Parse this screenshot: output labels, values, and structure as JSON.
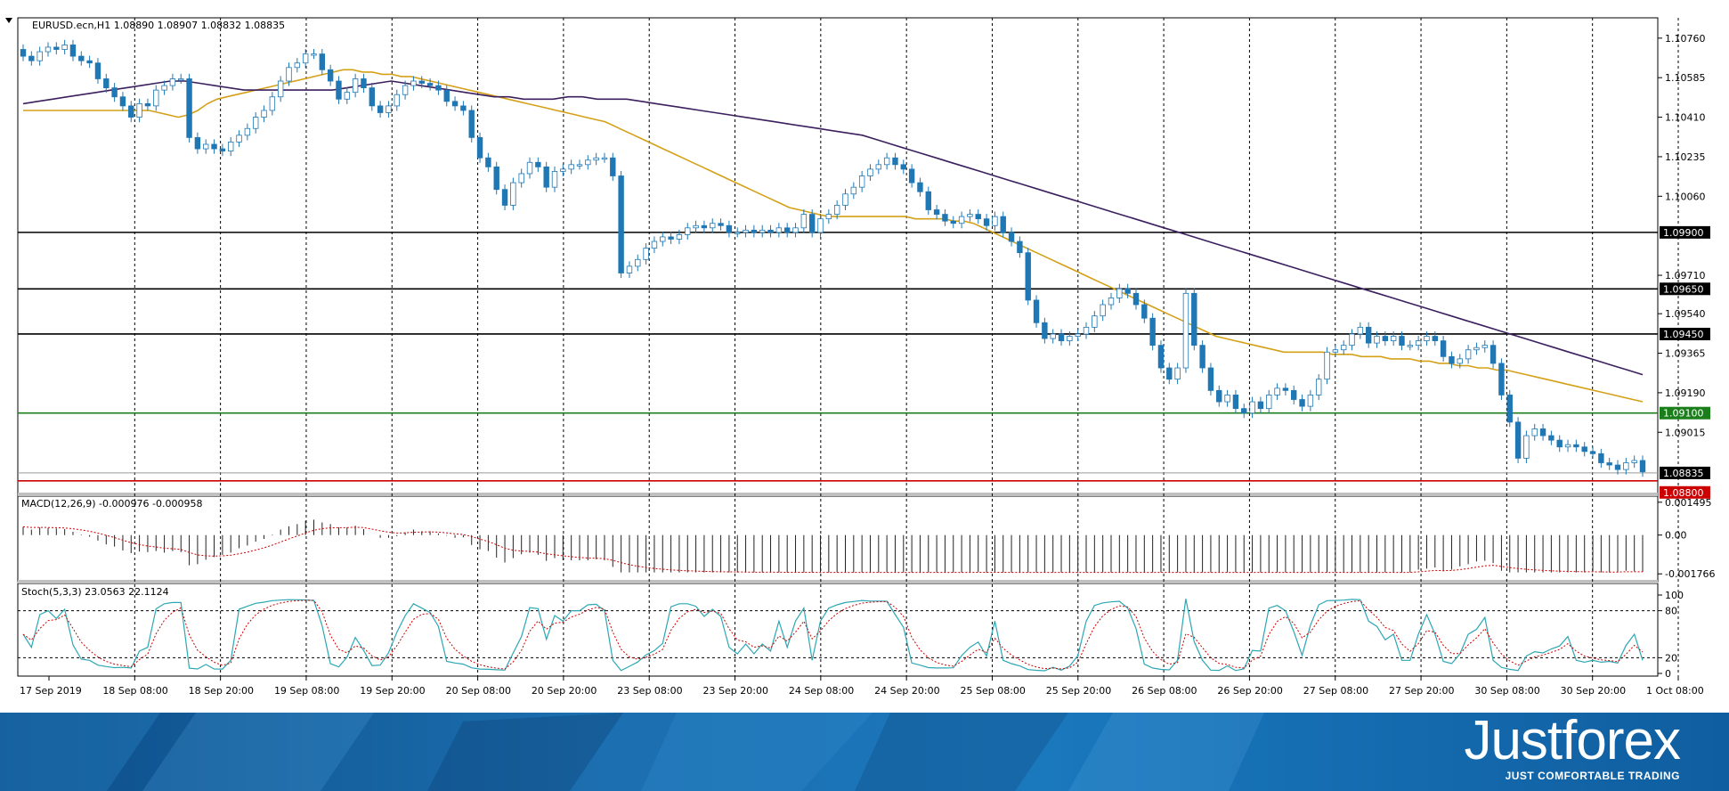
{
  "chart_data": {
    "type": "candlestick",
    "symbol_info": "EURUSD.ecn,H1  1.08890 1.08907 1.08832 1.08835",
    "price_axis": {
      "ylim": [
        1.0874,
        1.1085
      ],
      "ticks": [
        "1.10760",
        "1.10585",
        "1.10410",
        "1.10235",
        "1.10060",
        "1.09710",
        "1.09540",
        "1.09365",
        "1.09190",
        "1.09015"
      ]
    },
    "time_axis": {
      "labels": [
        "17 Sep 2019",
        "18 Sep 08:00",
        "18 Sep 20:00",
        "19 Sep 08:00",
        "19 Sep 20:00",
        "20 Sep 08:00",
        "20 Sep 20:00",
        "23 Sep 08:00",
        "23 Sep 20:00",
        "24 Sep 08:00",
        "24 Sep 20:00",
        "25 Sep 08:00",
        "25 Sep 20:00",
        "26 Sep 08:00",
        "26 Sep 20:00",
        "27 Sep 08:00",
        "27 Sep 20:00",
        "30 Sep 08:00",
        "30 Sep 20:00",
        "1 Oct 08:00"
      ]
    },
    "levels": [
      {
        "price": 1.099,
        "label": "1.09900",
        "color": "#000000"
      },
      {
        "price": 1.0965,
        "label": "1.09650",
        "color": "#000000"
      },
      {
        "price": 1.0945,
        "label": "1.09450",
        "color": "#000000"
      },
      {
        "price": 1.091,
        "label": "1.09100",
        "color": "#1a7f1a"
      }
    ],
    "current_price": {
      "price": 1.08835,
      "label": "1.08835"
    },
    "bottom_level": {
      "price": 1.088,
      "label": "1.08800",
      "color": "#cc0000"
    },
    "closes": [
      1.1068,
      1.1066,
      1.107,
      1.1072,
      1.1071,
      1.1073,
      1.1068,
      1.1066,
      1.1065,
      1.1058,
      1.1054,
      1.105,
      1.1046,
      1.1041,
      1.1047,
      1.1046,
      1.1053,
      1.1055,
      1.1058,
      1.1058,
      1.1032,
      1.1027,
      1.1029,
      1.1027,
      1.1026,
      1.103,
      1.1033,
      1.1036,
      1.1041,
      1.1044,
      1.105,
      1.1057,
      1.1063,
      1.1065,
      1.1069,
      1.1069,
      1.1062,
      1.1057,
      1.1049,
      1.1052,
      1.1058,
      1.1054,
      1.1046,
      1.1043,
      1.1046,
      1.1051,
      1.1055,
      1.1057,
      1.1056,
      1.1055,
      1.1053,
      1.1048,
      1.1046,
      1.1044,
      1.1032,
      1.1023,
      1.1019,
      1.1009,
      1.1002,
      1.1012,
      1.1016,
      1.1021,
      1.1019,
      1.101,
      1.1017,
      1.1018,
      1.102,
      1.102,
      1.1022,
      1.1023,
      1.1023,
      1.1015,
      1.0972,
      1.0975,
      1.0978,
      1.0983,
      1.0986,
      1.0988,
      1.0987,
      1.0989,
      1.0992,
      1.0993,
      1.0992,
      1.0994,
      1.0993,
      1.099,
      1.099,
      1.0991,
      1.099,
      1.0991,
      1.099,
      1.0992,
      1.099,
      1.0992,
      1.0998,
      1.099,
      1.0996,
      1.0998,
      1.1002,
      1.1007,
      1.101,
      1.1015,
      1.1018,
      1.102,
      1.1023,
      1.102,
      1.1018,
      1.1012,
      1.1008,
      1.1,
      1.0998,
      1.0995,
      1.0994,
      1.0997,
      1.0998,
      1.0996,
      1.0993,
      1.0997,
      1.099,
      1.0986,
      1.0981,
      1.096,
      1.095,
      1.0943,
      1.0945,
      1.0942,
      1.0944,
      1.0945,
      1.0948,
      1.0953,
      1.0958,
      1.0961,
      1.0965,
      1.0963,
      1.0958,
      1.0952,
      1.094,
      1.093,
      1.0925,
      1.093,
      1.0963,
      1.094,
      1.093,
      1.092,
      1.0915,
      1.0918,
      1.0912,
      1.091,
      1.0915,
      1.0912,
      1.0918,
      1.0921,
      1.092,
      1.0916,
      1.0913,
      1.0918,
      1.0925,
      1.0937,
      1.0938,
      1.094,
      1.0945,
      1.0948,
      1.0941,
      1.0944,
      1.0942,
      1.0944,
      1.094,
      1.094,
      1.0942,
      1.0944,
      1.0942,
      1.0935,
      1.0932,
      1.0934,
      1.0938,
      1.0939,
      1.094,
      1.0932,
      1.0918,
      1.0906,
      1.089,
      1.09,
      1.0903,
      1.09,
      1.0898,
      1.0895,
      1.0896,
      1.0895,
      1.0893,
      1.0892,
      1.0888,
      1.0887,
      1.0885,
      1.0888,
      1.0889,
      1.0884
    ],
    "sma_fast": [
      1.1044,
      1.1044,
      1.1044,
      1.1044,
      1.1044,
      1.1044,
      1.1044,
      1.1044,
      1.1044,
      1.1044,
      1.1044,
      1.1044,
      1.1044,
      1.1044,
      1.1043,
      1.1042,
      1.1041,
      1.1042,
      1.1044,
      1.1047,
      1.1049,
      1.105,
      1.1051,
      1.1052,
      1.1053,
      1.1054,
      1.1055,
      1.1056,
      1.1057,
      1.1058,
      1.1059,
      1.106,
      1.1061,
      1.1062,
      1.1062,
      1.1061,
      1.1061,
      1.106,
      1.106,
      1.1059,
      1.1059,
      1.1058,
      1.1057,
      1.1056,
      1.1055,
      1.1054,
      1.1053,
      1.1052,
      1.1051,
      1.105,
      1.1049,
      1.1048,
      1.1047,
      1.1046,
      1.1045,
      1.1044,
      1.1043,
      1.1042,
      1.1041,
      1.104,
      1.1039,
      1.1037,
      1.1035,
      1.1033,
      1.1031,
      1.1029,
      1.1027,
      1.1025,
      1.1023,
      1.1021,
      1.1019,
      1.1017,
      1.1015,
      1.1013,
      1.1011,
      1.1009,
      1.1007,
      1.1005,
      1.1003,
      1.1001,
      1.1,
      1.0999,
      1.0998,
      1.0997,
      1.0997,
      1.0997,
      1.0997,
      1.0997,
      1.0997,
      1.0997,
      1.0997,
      1.0997,
      1.0996,
      1.0996,
      1.0996,
      1.0996,
      1.0995,
      1.0995,
      1.0994,
      1.0992,
      1.099,
      1.0988,
      1.0986,
      1.0984,
      1.0982,
      1.098,
      1.0978,
      1.0976,
      1.0974,
      1.0972,
      1.097,
      1.0968,
      1.0966,
      1.0964,
      1.0962,
      1.096,
      1.0958,
      1.0956,
      1.0954,
      1.0952,
      1.095,
      1.0948,
      1.0946,
      1.0944,
      1.0943,
      1.0942,
      1.0941,
      1.094,
      1.0939,
      1.0938,
      1.0937,
      1.0937,
      1.0937,
      1.0937,
      1.0937,
      1.0936,
      1.0936,
      1.0936,
      1.0935,
      1.0935,
      1.0935,
      1.0934,
      1.0934,
      1.0934,
      1.0933,
      1.0933,
      1.0932,
      1.0932,
      1.0931,
      1.0931,
      1.093,
      1.093,
      1.0929,
      1.0929,
      1.0928,
      1.0927,
      1.0926,
      1.0925,
      1.0924,
      1.0923,
      1.0922,
      1.0921,
      1.092,
      1.0919,
      1.0918,
      1.0917,
      1.0916,
      1.0915
    ],
    "sma_slow": [
      1.1047,
      1.1048,
      1.1049,
      1.105,
      1.1051,
      1.1052,
      1.1053,
      1.1054,
      1.1055,
      1.1056,
      1.1057,
      1.1057,
      1.1056,
      1.1055,
      1.1054,
      1.1053,
      1.1053,
      1.1053,
      1.1053,
      1.1053,
      1.1053,
      1.1053,
      1.1054,
      1.1055,
      1.1056,
      1.1057,
      1.1056,
      1.1055,
      1.1054,
      1.1053,
      1.1052,
      1.1051,
      1.105,
      1.105,
      1.1049,
      1.1049,
      1.1049,
      1.105,
      1.105,
      1.1049,
      1.1049,
      1.1049,
      1.1048,
      1.1047,
      1.1046,
      1.1045,
      1.1044,
      1.1043,
      1.1042,
      1.1041,
      1.104,
      1.1039,
      1.1038,
      1.1037,
      1.1036,
      1.1035,
      1.1034,
      1.1033,
      1.1031,
      1.1029,
      1.1027,
      1.1025,
      1.1023,
      1.1021,
      1.1019,
      1.1017,
      1.1015,
      1.1013,
      1.1011,
      1.1009,
      1.1007,
      1.1005,
      1.1003,
      1.1001,
      1.0999,
      1.0997,
      1.0995,
      1.0993,
      1.0991,
      1.0989,
      1.0987,
      1.0985,
      1.0983,
      1.0981,
      1.0979,
      1.0977,
      1.0975,
      1.0973,
      1.0971,
      1.0969,
      1.0967,
      1.0965,
      1.0963,
      1.0961,
      1.0959,
      1.0957,
      1.0955,
      1.0953,
      1.0951,
      1.0949,
      1.0947,
      1.0945,
      1.0943,
      1.0941,
      1.0939,
      1.0937,
      1.0935,
      1.0933,
      1.0931,
      1.0929,
      1.0927
    ],
    "macd": {
      "label": "MACD(12,26,9) -0.000976 -0.000958",
      "ticks": [
        "0.001495",
        "0.00",
        "-0.001766"
      ],
      "ylim": [
        -0.002,
        0.00165
      ]
    },
    "stoch": {
      "label": "Stoch(5,3,3) 23.0563 22.1124",
      "ticks": [
        "100",
        "80",
        "20",
        "0"
      ],
      "levels": [
        80,
        20
      ]
    }
  },
  "brand": {
    "name": "Justforex",
    "tagline": "JUST COMFORTABLE TRADING"
  },
  "colors": {
    "bull": "#ffffff",
    "bear": "#1f77b4",
    "candle_outline": "#1f77b4",
    "sma_fast": "#d4a017",
    "sma_slow": "#3b1f5e",
    "macd_signal": "#cc0000",
    "stoch_main": "#2ca7b3",
    "stoch_signal": "#cc0000"
  }
}
